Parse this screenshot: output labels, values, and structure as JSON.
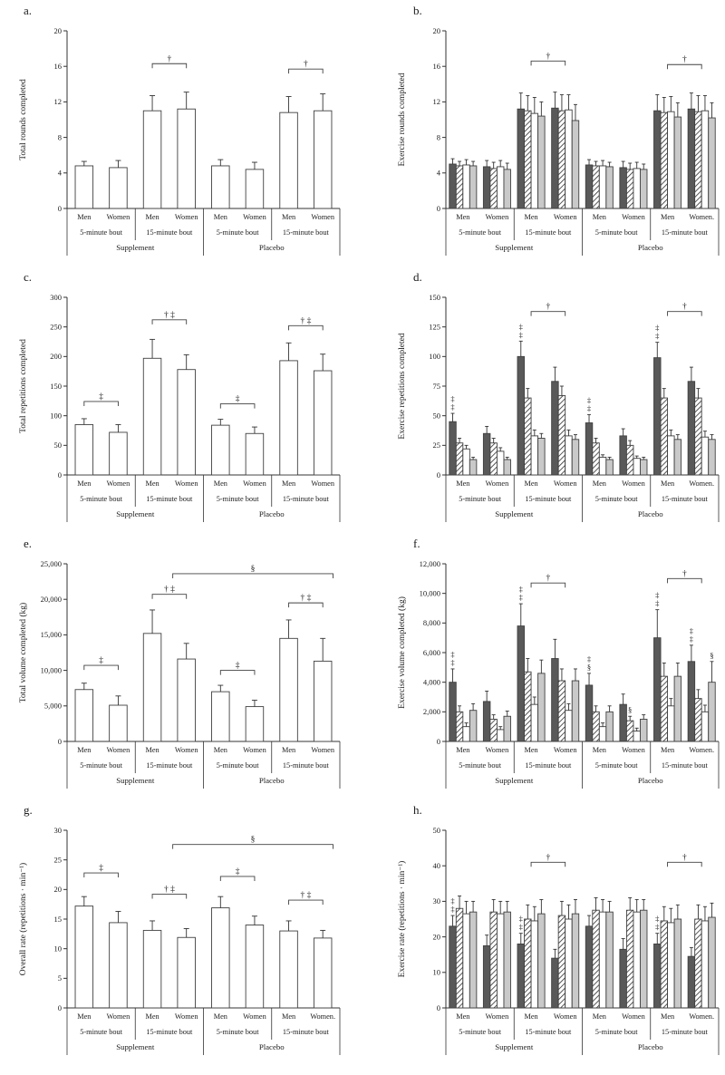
{
  "chart_data": [
    {
      "panel_label": "a.",
      "type": "bar",
      "ylabel": "Total rounds completed",
      "ylim": [
        0,
        20
      ],
      "yticks": [
        0,
        4,
        8,
        12,
        16,
        20
      ],
      "grid": false,
      "x": {
        "groups": [
          "Men",
          "Women",
          "Men",
          "Women",
          "Men",
          "Women",
          "Men",
          "Women"
        ],
        "bouts": [
          "5-minute bout",
          "15-minute bout",
          "5-minute bout",
          "15-minute bout"
        ],
        "conditions": [
          "Supplement",
          "Placebo"
        ]
      },
      "series": [
        {
          "name": "total",
          "fill": "white",
          "values": [
            4.8,
            4.6,
            11.0,
            11.2,
            4.8,
            4.4,
            10.8,
            11.0
          ],
          "errors": [
            0.5,
            0.8,
            1.7,
            1.9,
            0.7,
            0.8,
            1.8,
            1.9
          ]
        }
      ],
      "brackets": [
        {
          "g1": 2,
          "g2": 3,
          "y": 16.3,
          "label": "†"
        },
        {
          "g1": 6,
          "g2": 7,
          "y": 15.7,
          "label": "†"
        }
      ],
      "marks": []
    },
    {
      "panel_label": "b.",
      "type": "bar",
      "ylabel": "Exercise rounds completed",
      "ylim": [
        0,
        20
      ],
      "yticks": [
        0,
        4,
        8,
        12,
        16,
        20
      ],
      "grid": false,
      "x": {
        "groups": [
          "Men",
          "Women",
          "Men",
          "Women",
          "Men",
          "Women",
          "Men",
          "Women."
        ],
        "bouts": [
          "5-minute bout",
          "15-minute bout",
          "5-minute bout",
          "15-minute bout"
        ],
        "conditions": [
          "Supplement",
          "Placebo"
        ]
      },
      "series": [
        {
          "name": "exercise-1",
          "fill": "dark",
          "values": [
            5.0,
            4.7,
            11.2,
            11.3,
            4.9,
            4.6,
            11.0,
            11.2
          ],
          "errors": [
            0.6,
            0.7,
            1.8,
            1.8,
            0.6,
            0.7,
            1.8,
            1.8
          ]
        },
        {
          "name": "exercise-2",
          "fill": "hatch",
          "values": [
            4.8,
            4.5,
            11.0,
            11.0,
            4.8,
            4.4,
            10.8,
            10.9
          ],
          "errors": [
            0.5,
            0.7,
            1.7,
            1.8,
            0.5,
            0.7,
            1.7,
            1.8
          ]
        },
        {
          "name": "exercise-3",
          "fill": "white",
          "values": [
            4.9,
            4.7,
            10.7,
            11.1,
            4.8,
            4.5,
            10.9,
            11.0
          ],
          "errors": [
            0.6,
            0.7,
            1.8,
            1.7,
            0.6,
            0.7,
            1.7,
            1.7
          ]
        },
        {
          "name": "exercise-4",
          "fill": "gray",
          "values": [
            4.8,
            4.4,
            10.4,
            9.9,
            4.7,
            4.4,
            10.3,
            10.2
          ],
          "errors": [
            0.5,
            0.7,
            1.6,
            1.8,
            0.5,
            0.6,
            1.6,
            1.7
          ]
        }
      ],
      "brackets": [
        {
          "g1": 2,
          "g2": 3,
          "y": 16.6,
          "label": "†"
        },
        {
          "g1": 6,
          "g2": 7,
          "y": 16.2,
          "label": "†"
        }
      ],
      "marks": []
    },
    {
      "panel_label": "c.",
      "type": "bar",
      "ylabel": "Total repetitions completed",
      "ylim": [
        0,
        300
      ],
      "yticks": [
        0,
        50,
        100,
        150,
        200,
        250,
        300
      ],
      "grid": false,
      "x": {
        "groups": [
          "Men",
          "Women",
          "Men",
          "Women",
          "Men",
          "Women",
          "Men",
          "Women"
        ],
        "bouts": [
          "5-minute bout",
          "15-minute bout",
          "5-minute bout",
          "15-minute bout"
        ],
        "conditions": [
          "Supplement",
          "Placebo"
        ]
      },
      "series": [
        {
          "name": "total",
          "fill": "white",
          "values": [
            85,
            72,
            197,
            178,
            84,
            70,
            193,
            176
          ],
          "errors": [
            10,
            13,
            32,
            25,
            10,
            11,
            30,
            28
          ]
        }
      ],
      "brackets": [
        {
          "g1": 0,
          "g2": 1,
          "y": 124,
          "label": "‡"
        },
        {
          "g1": 2,
          "g2": 3,
          "y": 262,
          "label": "† ‡"
        },
        {
          "g1": 4,
          "g2": 5,
          "y": 120,
          "label": "‡"
        },
        {
          "g1": 6,
          "g2": 7,
          "y": 252,
          "label": "† ‡"
        }
      ],
      "marks": []
    },
    {
      "panel_label": "d.",
      "type": "bar",
      "ylabel": "Exercise repetitions completed",
      "ylim": [
        0,
        150
      ],
      "yticks": [
        0,
        25,
        50,
        75,
        100,
        125,
        150
      ],
      "grid": false,
      "x": {
        "groups": [
          "Men",
          "Women",
          "Men",
          "Women",
          "Men",
          "Women",
          "Men",
          "Women."
        ],
        "bouts": [
          "5-minute bout",
          "15-minute bout",
          "5-minute bout",
          "15-minute bout"
        ],
        "conditions": [
          "Supplement",
          "Placebo"
        ]
      },
      "series": [
        {
          "name": "exercise-1",
          "fill": "dark",
          "values": [
            45,
            35,
            100,
            79,
            44,
            33,
            99,
            79
          ],
          "errors": [
            7,
            6,
            13,
            12,
            7,
            6,
            13,
            12
          ]
        },
        {
          "name": "exercise-2",
          "fill": "hatch",
          "values": [
            27,
            27,
            65,
            67,
            27,
            25,
            65,
            65
          ],
          "errors": [
            4,
            4,
            8,
            8,
            4,
            4,
            8,
            8
          ]
        },
        {
          "name": "exercise-3",
          "fill": "white",
          "values": [
            22,
            20,
            33,
            33,
            15,
            14,
            33,
            32
          ],
          "errors": [
            3,
            3,
            5,
            5,
            2,
            2,
            5,
            5
          ]
        },
        {
          "name": "exercise-4",
          "fill": "gray",
          "values": [
            13,
            13,
            31,
            30,
            13,
            13,
            30,
            30
          ],
          "errors": [
            2,
            2,
            4,
            4,
            2,
            2,
            4,
            4
          ]
        }
      ],
      "brackets": [
        {
          "g1": 2,
          "g2": 3,
          "y": 138,
          "label": "†"
        },
        {
          "g1": 6,
          "g2": 7,
          "y": 138,
          "label": "†"
        }
      ],
      "marks": [
        {
          "g": 0,
          "s": 0,
          "lines": [
            "‡",
            "‡"
          ]
        },
        {
          "g": 2,
          "s": 0,
          "lines": [
            "‡",
            "‡"
          ]
        },
        {
          "g": 4,
          "s": 0,
          "lines": [
            "‡",
            "‡"
          ]
        },
        {
          "g": 6,
          "s": 0,
          "lines": [
            "‡",
            "‡"
          ]
        }
      ]
    },
    {
      "panel_label": "e.",
      "type": "bar",
      "ylabel": "Total volume completed (kg)",
      "ylim": [
        0,
        25000
      ],
      "yticks": [
        0,
        5000,
        10000,
        15000,
        20000,
        25000
      ],
      "grid": false,
      "x": {
        "groups": [
          "Men",
          "Women",
          "Men",
          "Women",
          "Men",
          "Women",
          "Men",
          "Women"
        ],
        "bouts": [
          "5-minute bout",
          "15-minute bout",
          "5-minute bout",
          "15-minute bout"
        ],
        "conditions": [
          "Supplement",
          "Placebo"
        ]
      },
      "series": [
        {
          "name": "total",
          "fill": "white",
          "values": [
            7300,
            5100,
            15200,
            11600,
            7000,
            4900,
            14500,
            11300
          ],
          "errors": [
            900,
            1300,
            3300,
            2200,
            900,
            900,
            2600,
            3200
          ]
        }
      ],
      "brackets": [
        {
          "g1": 0,
          "g2": 1,
          "y": 10700,
          "label": "‡"
        },
        {
          "g1": 2,
          "g2": 3,
          "y": 20700,
          "label": "† ‡"
        },
        {
          "g1": 4,
          "g2": 5,
          "y": 10000,
          "label": "‡"
        },
        {
          "g1": 6,
          "g2": 7,
          "y": 19500,
          "label": "† ‡"
        },
        {
          "g1": 2.6,
          "g2": 7.3,
          "y": 23600,
          "label": "§"
        }
      ],
      "marks": []
    },
    {
      "panel_label": "f.",
      "type": "bar",
      "ylabel": "Exercise volume completed (kg)",
      "ylim": [
        0,
        12000
      ],
      "yticks": [
        0,
        2000,
        4000,
        6000,
        8000,
        10000,
        12000
      ],
      "grid": false,
      "x": {
        "groups": [
          "Men",
          "Women",
          "Men",
          "Women",
          "Men",
          "Women",
          "Men",
          "Women."
        ],
        "bouts": [
          "5-minute bout",
          "15-minute bout",
          "5-minute bout",
          "15-minute bout"
        ],
        "conditions": [
          "Supplement",
          "Placebo"
        ]
      },
      "series": [
        {
          "name": "exercise-1",
          "fill": "dark",
          "values": [
            4000,
            2700,
            7800,
            5600,
            3800,
            2500,
            7000,
            5400
          ],
          "errors": [
            900,
            700,
            1500,
            1300,
            800,
            700,
            1900,
            1100
          ]
        },
        {
          "name": "exercise-2",
          "fill": "hatch",
          "values": [
            2000,
            1500,
            4700,
            4100,
            2000,
            1400,
            4400,
            2900
          ],
          "errors": [
            400,
            300,
            900,
            800,
            400,
            300,
            900,
            600
          ]
        },
        {
          "name": "exercise-3",
          "fill": "white",
          "values": [
            1000,
            800,
            2500,
            2100,
            1000,
            700,
            2400,
            2000
          ],
          "errors": [
            250,
            200,
            500,
            450,
            250,
            200,
            500,
            450
          ]
        },
        {
          "name": "exercise-4",
          "fill": "gray",
          "values": [
            2100,
            1700,
            4600,
            4100,
            2000,
            1500,
            4400,
            4000
          ],
          "errors": [
            450,
            350,
            900,
            800,
            400,
            300,
            900,
            1400
          ]
        }
      ],
      "brackets": [
        {
          "g1": 2,
          "g2": 3,
          "y": 10700,
          "label": "†"
        },
        {
          "g1": 6,
          "g2": 7,
          "y": 11000,
          "label": "†"
        }
      ],
      "marks": [
        {
          "g": 0,
          "s": 0,
          "lines": [
            "‡",
            "‡"
          ]
        },
        {
          "g": 2,
          "s": 0,
          "lines": [
            "‡",
            "‡"
          ]
        },
        {
          "g": 4,
          "s": 0,
          "lines": [
            "‡",
            "§"
          ]
        },
        {
          "g": 5,
          "s": 1,
          "lines": [
            "§"
          ]
        },
        {
          "g": 6,
          "s": 0,
          "lines": [
            "‡",
            "‡"
          ]
        },
        {
          "g": 7,
          "s": 0,
          "lines": [
            "‡",
            "‡"
          ]
        },
        {
          "g": 7,
          "s": 3,
          "lines": [
            "§"
          ]
        }
      ]
    },
    {
      "panel_label": "g.",
      "type": "bar",
      "ylabel": "Overall rate (repetitions · min⁻¹)",
      "ylim": [
        0,
        30
      ],
      "yticks": [
        0,
        5,
        10,
        15,
        20,
        25,
        30
      ],
      "grid": false,
      "x": {
        "groups": [
          "Men",
          "Women",
          "Men",
          "Women",
          "Men",
          "Women",
          "Men",
          "Women."
        ],
        "bouts": [
          "5-minute bout",
          "15-minute bout",
          "5-minute bout",
          "15-minute bout"
        ],
        "conditions": [
          "Supplement",
          "Placebo"
        ]
      },
      "series": [
        {
          "name": "overall",
          "fill": "white",
          "values": [
            17.2,
            14.4,
            13.1,
            11.9,
            16.9,
            14.0,
            13.0,
            11.8
          ],
          "errors": [
            1.6,
            1.9,
            1.6,
            1.5,
            1.9,
            1.5,
            1.7,
            1.3
          ]
        }
      ],
      "brackets": [
        {
          "g1": 0,
          "g2": 1,
          "y": 22.8,
          "label": "‡"
        },
        {
          "g1": 2,
          "g2": 3,
          "y": 19.2,
          "label": "† ‡"
        },
        {
          "g1": 4,
          "g2": 5,
          "y": 22.2,
          "label": "‡"
        },
        {
          "g1": 6,
          "g2": 7,
          "y": 18.2,
          "label": "† ‡"
        },
        {
          "g1": 2.6,
          "g2": 7.3,
          "y": 27.6,
          "label": "§"
        }
      ],
      "marks": []
    },
    {
      "panel_label": "h.",
      "type": "bar",
      "ylabel": "Exercise rate (repetitions · min⁻¹)",
      "ylim": [
        0,
        50
      ],
      "yticks": [
        0,
        10,
        20,
        30,
        40,
        50
      ],
      "grid": false,
      "x": {
        "groups": [
          "Men",
          "Women",
          "Men",
          "Women",
          "Men",
          "Women",
          "Men",
          "Women."
        ],
        "bouts": [
          "5-minute bout",
          "15-minute bout",
          "5-minute bout",
          "15-minute bout"
        ],
        "conditions": [
          "Supplement",
          "Placebo"
        ]
      },
      "series": [
        {
          "name": "exercise-1",
          "fill": "dark",
          "values": [
            23,
            17.5,
            18,
            14,
            23,
            16.5,
            18,
            14.5
          ],
          "errors": [
            3,
            3,
            3,
            2.5,
            3,
            3,
            3,
            2.5
          ]
        },
        {
          "name": "exercise-2",
          "fill": "hatch",
          "values": [
            28,
            27,
            25,
            26,
            27.5,
            27.5,
            24.5,
            25
          ],
          "errors": [
            3.5,
            3.5,
            4,
            4,
            3.5,
            3.5,
            4,
            4
          ]
        },
        {
          "name": "exercise-3",
          "fill": "white",
          "values": [
            26.5,
            26.5,
            24.5,
            25,
            27,
            27,
            24,
            24.5
          ],
          "errors": [
            3.5,
            3.5,
            4,
            4,
            3.5,
            3.5,
            4,
            4
          ]
        },
        {
          "name": "exercise-4",
          "fill": "gray",
          "values": [
            27,
            27,
            26.5,
            26.5,
            27,
            27.5,
            25,
            25.5
          ],
          "errors": [
            3,
            3,
            4,
            4,
            3,
            3,
            4,
            4
          ]
        }
      ],
      "brackets": [
        {
          "g1": 2,
          "g2": 3,
          "y": 41,
          "label": "†"
        },
        {
          "g1": 6,
          "g2": 7,
          "y": 41,
          "label": "†"
        }
      ],
      "marks": [
        {
          "g": 0,
          "s": 0,
          "lines": [
            "‡",
            "‡"
          ]
        },
        {
          "g": 2,
          "s": 0,
          "lines": [
            "‡",
            "‡"
          ]
        },
        {
          "g": 6,
          "s": 0,
          "lines": [
            "‡",
            "‡"
          ]
        }
      ]
    }
  ]
}
